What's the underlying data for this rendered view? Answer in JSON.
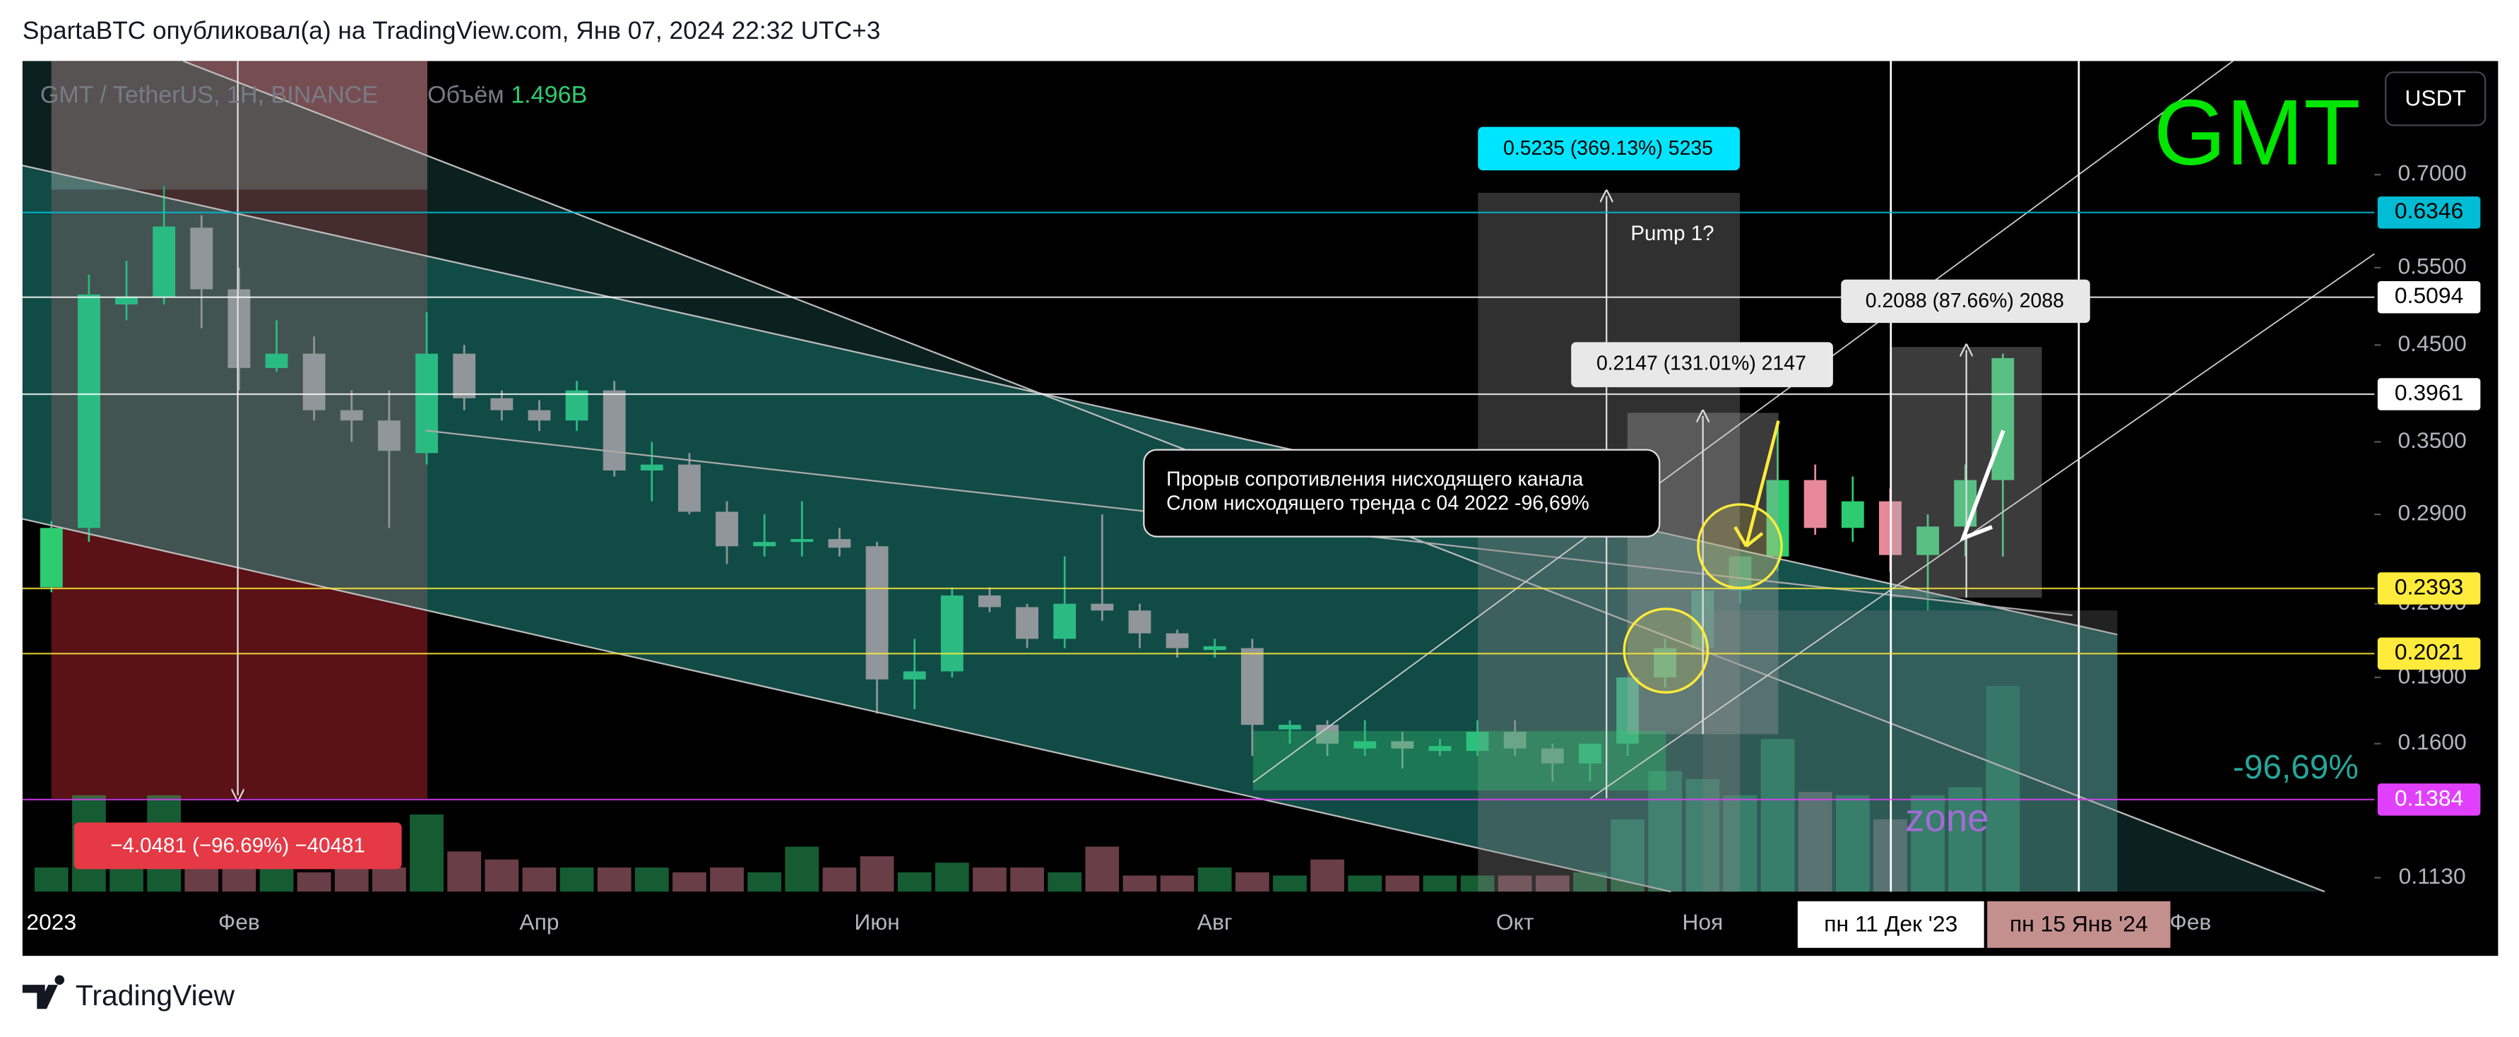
{
  "header": {
    "byline": "SpartaBTC опубликовал(а) на TradingView.com, Янв 07, 2024 22:32 UTC+3"
  },
  "footer": {
    "brand": "TradingView"
  },
  "chart_data": {
    "type": "candlestick",
    "legend": {
      "symbol": "GMT / TetherUS, 1H, BINANCE",
      "volume_label": "Объём",
      "volume_value": "1.496B"
    },
    "currency_button": "USDT",
    "watermark": "GMT",
    "change_label": "-96,69%",
    "pump_label": "Pump 1?",
    "zone_label": "zone",
    "callout": [
      "Прорыв сопротивления нисходящего канала",
      "Слом нисходящего тренда с 04 2022 -96,69%"
    ],
    "measures": [
      "0.5235 (369.13%) 5235",
      "0.2147 (131.01%) 2147",
      "0.2088 (87.66%) 2088",
      "−4.0481 (−96.69%) −40481"
    ],
    "crosshair_labels": [
      "пн 11 Дек '23",
      "пн 15 Янв '24"
    ],
    "categories": [
      "2023",
      null,
      null,
      null,
      null,
      "Фев",
      null,
      null,
      null,
      null,
      null,
      null,
      null,
      "Апр",
      null,
      null,
      null,
      null,
      null,
      null,
      null,
      null,
      "Июн",
      null,
      null,
      null,
      null,
      null,
      null,
      null,
      null,
      "Авг",
      null,
      null,
      null,
      null,
      null,
      null,
      null,
      "Окт",
      null,
      null,
      null,
      null,
      "Ноя",
      null,
      null,
      null,
      null,
      null,
      null,
      null,
      null,
      null,
      null,
      null,
      null,
      "Фев"
    ],
    "open": [
      0.24,
      0.28,
      0.5,
      0.51,
      0.61,
      0.52,
      0.424,
      0.44,
      0.38,
      0.37,
      0.34,
      0.44,
      0.392,
      0.38,
      0.37,
      0.4,
      0.325,
      0.33,
      0.292,
      0.267,
      0.27,
      0.272,
      0.267,
      0.189,
      0.193,
      0.235,
      0.228,
      0.21,
      0.23,
      0.226,
      0.213,
      0.204,
      0.205,
      0.166,
      0.168,
      0.158,
      0.161,
      0.157,
      0.157,
      0.165,
      0.158,
      0.152,
      0.16,
      0.19,
      0.205,
      0.238,
      0.26,
      0.317,
      0.28,
      0.3,
      0.261,
      0.281,
      0.317,
      null,
      null,
      null,
      null,
      null
    ],
    "high": [
      0.285,
      0.54,
      0.56,
      0.68,
      0.63,
      0.55,
      0.48,
      0.46,
      0.4,
      0.4,
      0.49,
      0.45,
      0.4,
      0.39,
      0.41,
      0.41,
      0.35,
      0.34,
      0.3,
      0.29,
      0.3,
      0.28,
      0.27,
      0.21,
      0.24,
      0.24,
      0.23,
      0.26,
      0.29,
      0.23,
      0.215,
      0.21,
      0.21,
      0.17,
      0.17,
      0.17,
      0.165,
      0.162,
      0.17,
      0.17,
      0.16,
      0.16,
      0.19,
      0.21,
      0.24,
      0.26,
      0.37,
      0.33,
      0.32,
      0.31,
      0.29,
      0.33,
      0.44,
      null,
      null,
      null,
      null,
      null
    ],
    "low": [
      0.237,
      0.27,
      0.48,
      0.5,
      0.47,
      0.4,
      0.42,
      0.37,
      0.35,
      0.28,
      0.33,
      0.38,
      0.37,
      0.36,
      0.36,
      0.32,
      0.3,
      0.29,
      0.255,
      0.26,
      0.26,
      0.26,
      0.173,
      0.175,
      0.19,
      0.225,
      0.205,
      0.205,
      0.22,
      0.205,
      0.2,
      0.2,
      0.155,
      0.16,
      0.155,
      0.155,
      0.15,
      0.155,
      0.155,
      0.155,
      0.145,
      0.145,
      0.155,
      0.185,
      0.2,
      0.23,
      0.25,
      0.275,
      0.27,
      0.25,
      0.226,
      0.26,
      0.26,
      null,
      null,
      null,
      null,
      null
    ],
    "close": [
      0.28,
      0.513,
      0.51,
      0.612,
      0.52,
      0.424,
      0.44,
      0.38,
      0.37,
      0.342,
      0.44,
      0.392,
      0.38,
      0.37,
      0.4,
      0.325,
      0.33,
      0.292,
      0.267,
      0.27,
      0.272,
      0.266,
      0.189,
      0.193,
      0.235,
      0.228,
      0.21,
      0.23,
      0.226,
      0.213,
      0.205,
      0.206,
      0.168,
      0.168,
      0.16,
      0.161,
      0.158,
      0.159,
      0.165,
      0.158,
      0.152,
      0.16,
      0.19,
      0.205,
      0.238,
      0.26,
      0.317,
      0.28,
      0.3,
      0.261,
      0.281,
      0.317,
      0.435,
      null,
      null,
      null,
      null,
      null
    ],
    "volume": [
      75,
      300,
      75,
      300,
      75,
      75,
      75,
      60,
      75,
      75,
      240,
      125,
      100,
      75,
      75,
      75,
      75,
      60,
      75,
      60,
      140,
      75,
      110,
      60,
      90,
      75,
      75,
      60,
      140,
      50,
      50,
      75,
      60,
      50,
      100,
      50,
      50,
      50,
      50,
      50,
      50,
      60,
      225,
      375,
      350,
      300,
      475,
      310,
      300,
      225,
      300,
      325,
      640,
      null,
      null,
      null,
      null,
      null
    ],
    "volume_lim": [
      0,
      1000
    ],
    "up_color": "#2ecc71",
    "down_color": "#e8899b",
    "log_scale": true,
    "ylim": [
      0.109,
      0.94
    ],
    "yticks": [
      {
        "value": 0.7,
        "label": "0.7000"
      },
      {
        "value": 0.55,
        "label": "0.5500"
      },
      {
        "value": 0.45,
        "label": "0.4500"
      },
      {
        "value": 0.35,
        "label": "0.3500"
      },
      {
        "value": 0.29,
        "label": "0.2900"
      },
      {
        "value": 0.23,
        "label": "0.2300"
      },
      {
        "value": 0.19,
        "label": "0.1900"
      },
      {
        "value": 0.16,
        "label": "0.1600"
      },
      {
        "value": 0.113,
        "label": "0.1130"
      }
    ],
    "price_lines": [
      {
        "value": 0.6346,
        "color": "#00bcd4",
        "text_color": "#000000"
      },
      {
        "value": 0.5094,
        "color": "#ffffff",
        "text_color": "#000000"
      },
      {
        "value": 0.3961,
        "color": "#ffffff",
        "text_color": "#000000"
      },
      {
        "value": 0.2393,
        "color": "#ffeb3b",
        "text_color": "#000000"
      },
      {
        "value": 0.2021,
        "color": "#ffeb3b",
        "text_color": "#000000"
      },
      {
        "value": 0.1384,
        "color": "#e040fb",
        "text_color": "#ffffff"
      }
    ]
  }
}
